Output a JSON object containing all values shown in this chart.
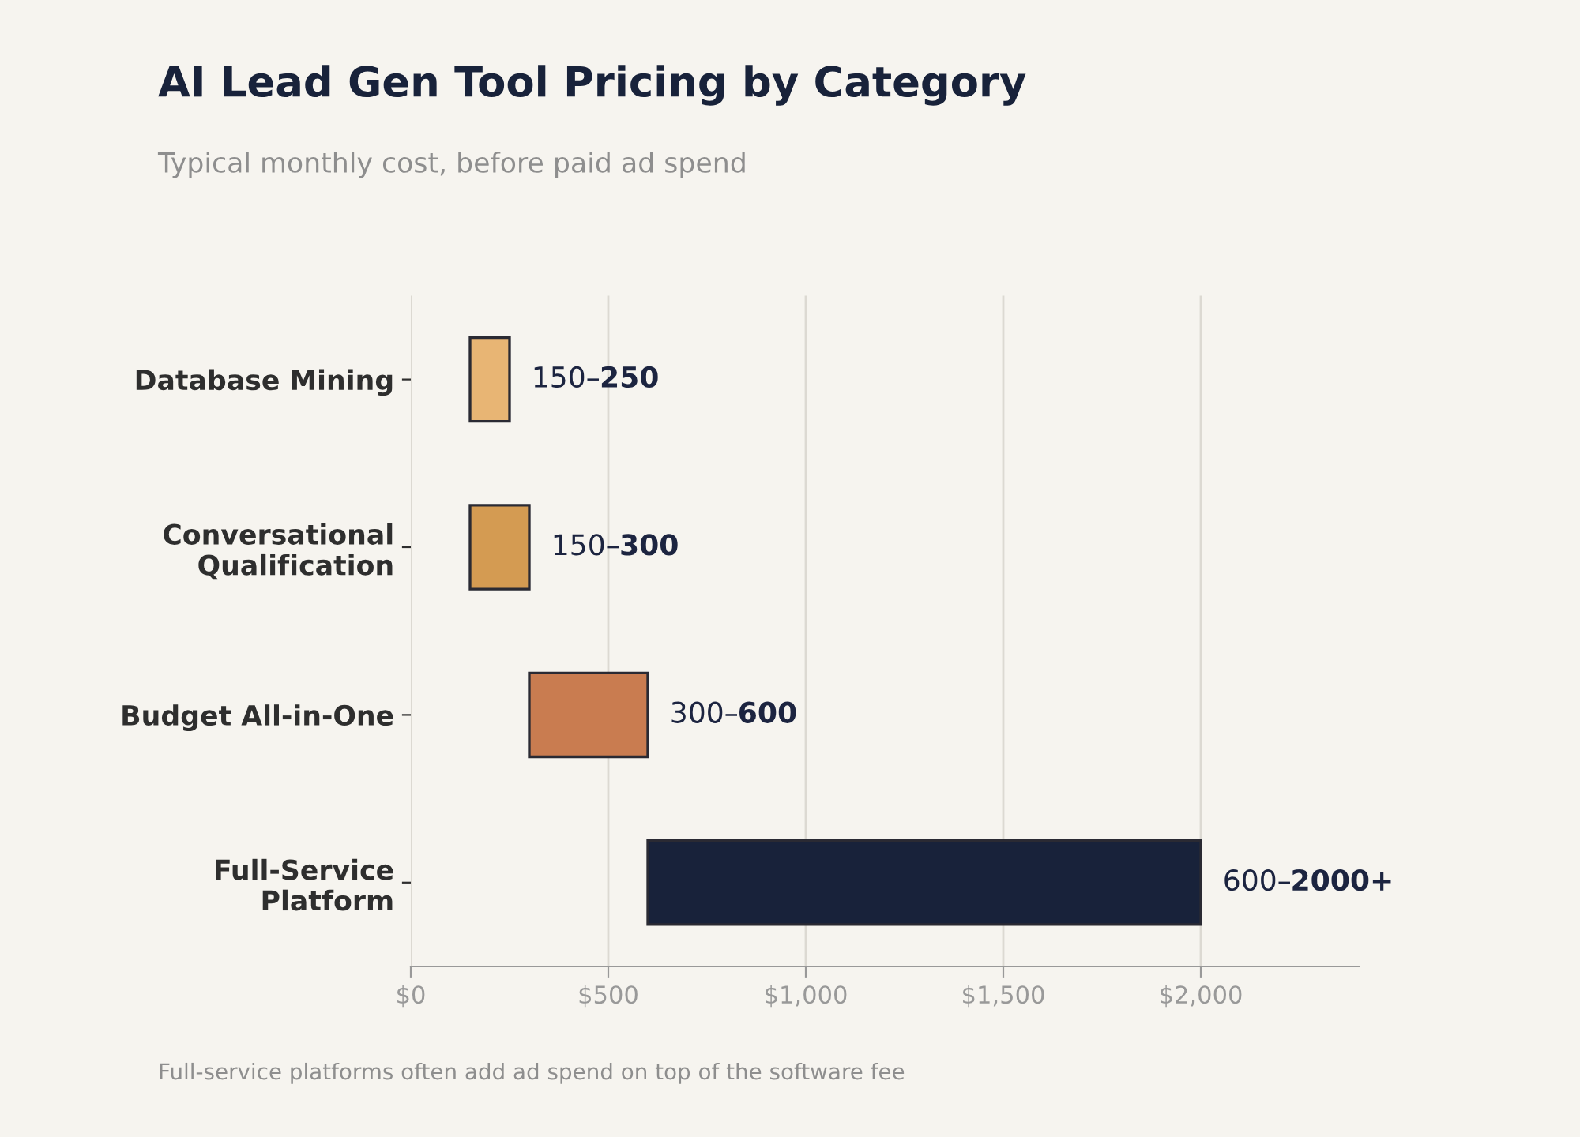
{
  "chart_data": {
    "type": "bar",
    "orientation": "horizontal",
    "title": "AI Lead Gen Tool Pricing by Category",
    "subtitle": "Typical monthly cost, before paid ad spend",
    "categories": [
      "Database Mining",
      "Conversational\nQualification",
      "Budget All-in-One",
      "Full-Service\nPlatform"
    ],
    "base": [
      150,
      150,
      300,
      600
    ],
    "values": [
      100,
      150,
      300,
      1400
    ],
    "colors": [
      "#e8b574",
      "#d49b52",
      "#c97c50",
      "#18223a"
    ],
    "value_labels": [
      "150–250",
      "150–300",
      "300–600",
      "600–2000+"
    ],
    "xlim": [
      0,
      2400
    ],
    "xticks": [
      {
        "value": 0,
        "label": "$0"
      },
      {
        "value": 500,
        "label": "$500"
      },
      {
        "value": 1000,
        "label": "$1,000"
      },
      {
        "value": 1500,
        "label": "$1,500"
      },
      {
        "value": 2000,
        "label": "$2,000"
      }
    ],
    "grid": "x",
    "annotations": [
      "Full-service platforms often add ad spend on top of the software fee"
    ]
  }
}
